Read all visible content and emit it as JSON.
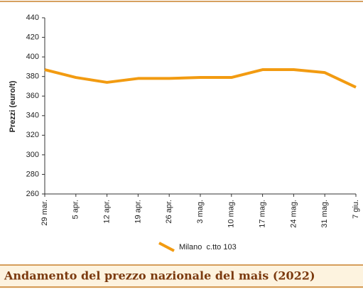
{
  "chart_data": {
    "type": "line",
    "title": "Andamento del prezzo nazionale del mais (2022)",
    "y_label": "Prezzi (euro/t)",
    "categories": [
      "29 mar.",
      "5 apr.",
      "12 apr.",
      "19 apr.",
      "26 apr.",
      "3 mag.",
      "10 mag.",
      "17 mag.",
      "24 mag.",
      "31 mag.",
      "7 giu."
    ],
    "series": [
      {
        "name": "Milano  c.tto 103",
        "color": "#f29b11",
        "values": [
          387,
          379,
          374,
          378,
          378,
          379,
          379,
          387,
          387,
          384,
          369
        ]
      }
    ],
    "ylim": [
      260,
      440
    ],
    "yticks": [
      260,
      280,
      300,
      320,
      340,
      360,
      380,
      400,
      420,
      440
    ],
    "grid": false
  }
}
